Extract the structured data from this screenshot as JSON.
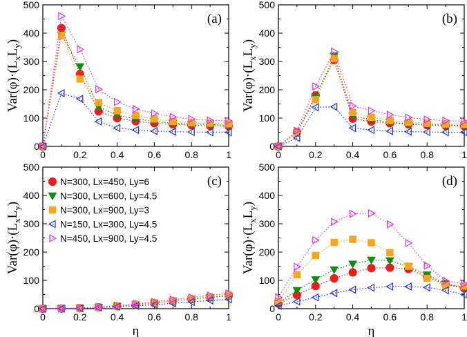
{
  "chart_data": [
    {
      "type": "line",
      "panel": "(a)",
      "xlabel": "",
      "ylabel": "Var(φ)·(L_x L_y)",
      "xlim": [
        0,
        1
      ],
      "ylim": [
        0,
        500
      ],
      "x": [
        0,
        0.1,
        0.2,
        0.3,
        0.4,
        0.5,
        0.6,
        0.7,
        0.8,
        0.9,
        1.0
      ],
      "series": [
        {
          "name": "N=300, Lx=450, Ly=6",
          "values": [
            0,
            418,
            256,
            124,
            100,
            89,
            82,
            78,
            75,
            73,
            72
          ]
        },
        {
          "name": "N=300, Lx=600, Ly=4.5",
          "values": [
            0,
            394,
            282,
            140,
            110,
            97,
            88,
            82,
            79,
            77,
            75
          ]
        },
        {
          "name": "N=300, Lx=900, Ly=3",
          "values": [
            0,
            392,
            238,
            155,
            126,
            110,
            97,
            88,
            84,
            82,
            80
          ]
        },
        {
          "name": "N=150, Lx=300, Ly=4.5",
          "values": [
            0,
            188,
            168,
            88,
            65,
            58,
            54,
            52,
            51,
            50,
            50
          ]
        },
        {
          "name": "N=450, Lx=900, Ly=4.5",
          "values": [
            0,
            460,
            343,
            202,
            157,
            132,
            117,
            104,
            97,
            92,
            90
          ]
        }
      ]
    },
    {
      "type": "line",
      "panel": "(b)",
      "xlabel": "",
      "ylabel": "Var(φ)·(L_x L_y)",
      "xlim": [
        0,
        1
      ],
      "ylim": [
        0,
        500
      ],
      "x": [
        0,
        0.1,
        0.2,
        0.3,
        0.4,
        0.5,
        0.6,
        0.7,
        0.8,
        0.9,
        1.0
      ],
      "series": [
        {
          "name": "N=300, Lx=450, Ly=6",
          "values": [
            0,
            50,
            180,
            305,
            98,
            88,
            82,
            78,
            75,
            73,
            72
          ]
        },
        {
          "name": "N=300, Lx=600, Ly=4.5",
          "values": [
            0,
            48,
            175,
            320,
            108,
            94,
            86,
            80,
            77,
            75,
            74
          ]
        },
        {
          "name": "N=300, Lx=900, Ly=3",
          "values": [
            0,
            47,
            165,
            310,
            120,
            103,
            92,
            85,
            81,
            79,
            78
          ]
        },
        {
          "name": "N=150, Lx=300, Ly=4.5",
          "values": [
            0,
            30,
            138,
            140,
            65,
            58,
            54,
            52,
            51,
            50,
            50
          ]
        },
        {
          "name": "N=450, Lx=900, Ly=4.5",
          "values": [
            0,
            55,
            212,
            335,
            143,
            126,
            112,
            102,
            95,
            91,
            89
          ]
        }
      ]
    },
    {
      "type": "line",
      "panel": "(c)",
      "xlabel": "η",
      "ylabel": "Var(φ)·(L_x L_y)",
      "xlim": [
        0,
        1
      ],
      "ylim": [
        0,
        500
      ],
      "x": [
        0,
        0.1,
        0.2,
        0.3,
        0.4,
        0.5,
        0.6,
        0.7,
        0.8,
        0.9,
        1.0
      ],
      "series": [
        {
          "name": "N=300, Lx=450, Ly=6",
          "values": [
            0,
            0.5,
            2,
            5,
            9,
            14,
            20,
            27,
            34,
            40,
            46
          ]
        },
        {
          "name": "N=300, Lx=600, Ly=4.5",
          "values": [
            0,
            0.5,
            2,
            5,
            9,
            14,
            20,
            27,
            34,
            40,
            45
          ]
        },
        {
          "name": "N=300, Lx=900, Ly=3",
          "values": [
            0,
            0.5,
            2,
            5,
            10,
            15,
            21,
            28,
            35,
            42,
            48
          ]
        },
        {
          "name": "N=150, Lx=300, Ly=4.5",
          "values": [
            0,
            0.5,
            1.5,
            4,
            7,
            10,
            14,
            19,
            24,
            29,
            33
          ]
        },
        {
          "name": "N=450, Lx=900, Ly=4.5",
          "values": [
            0,
            1,
            3,
            6,
            11,
            17,
            24,
            32,
            40,
            47,
            54
          ]
        }
      ]
    },
    {
      "type": "line",
      "panel": "(d)",
      "xlabel": "η",
      "ylabel": "Var(φ)·(L_x L_y)",
      "xlim": [
        0,
        1
      ],
      "ylim": [
        0,
        500
      ],
      "x": [
        0,
        0.1,
        0.2,
        0.3,
        0.4,
        0.5,
        0.6,
        0.7,
        0.8,
        0.9,
        1.0
      ],
      "series": [
        {
          "name": "N=300, Lx=450, Ly=6",
          "values": [
            18,
            48,
            80,
            107,
            128,
            143,
            145,
            140,
            112,
            86,
            72
          ]
        },
        {
          "name": "N=300, Lx=600, Ly=4.5",
          "values": [
            20,
            65,
            103,
            138,
            158,
            172,
            170,
            148,
            120,
            88,
            75
          ]
        },
        {
          "name": "N=300, Lx=900, Ly=3",
          "values": [
            26,
            120,
            188,
            234,
            245,
            233,
            198,
            150,
            107,
            82,
            80
          ]
        },
        {
          "name": "N=150, Lx=300, Ly=4.5",
          "values": [
            10,
            25,
            40,
            55,
            67,
            74,
            78,
            78,
            75,
            65,
            50
          ]
        },
        {
          "name": "N=450, Lx=900, Ly=4.5",
          "values": [
            40,
            148,
            242,
            307,
            335,
            337,
            298,
            232,
            152,
            98,
            88
          ]
        }
      ]
    }
  ],
  "series_styles": [
    {
      "color": "#ee1c1c",
      "marker": "circle"
    },
    {
      "color": "#138a13",
      "marker": "triangle-down"
    },
    {
      "color": "#f5a623",
      "marker": "square"
    },
    {
      "color": "#1c2fe0",
      "marker": "triangle-left"
    },
    {
      "color": "#e62ee6",
      "marker": "triangle-right"
    }
  ],
  "legend_panel": "(c)",
  "ticks": {
    "x": [
      "0",
      "0.2",
      "0.4",
      "0.6",
      "0.8",
      "1"
    ],
    "y": [
      "0",
      "100",
      "200",
      "300",
      "400",
      "500"
    ]
  },
  "labels": {
    "ylabel_main": "Var(φ)·(L",
    "ylabel_sub1": "x",
    "ylabel_mid": "L",
    "ylabel_sub2": "y",
    "ylabel_close": ")",
    "xlabel": "η"
  }
}
